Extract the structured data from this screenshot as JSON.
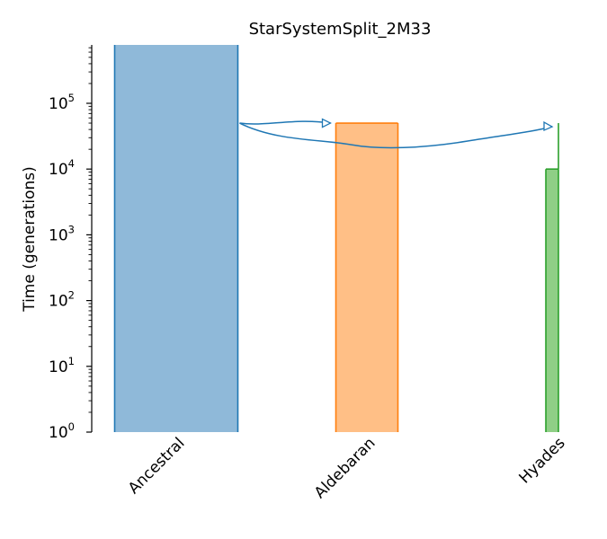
{
  "chart_data": {
    "type": "bar",
    "title": "StarSystemSplit_2M33",
    "ylabel": "Time (generations)",
    "xlabel": "",
    "yscale": "log",
    "ylim": [
      1,
      800000
    ],
    "y_ticks": [
      {
        "base": "10",
        "exp": "0"
      },
      {
        "base": "10",
        "exp": "1"
      },
      {
        "base": "10",
        "exp": "2"
      },
      {
        "base": "10",
        "exp": "3"
      },
      {
        "base": "10",
        "exp": "4"
      },
      {
        "base": "10",
        "exp": "5"
      }
    ],
    "categories": [
      "Ancestral",
      "Aldebaran",
      "Hyades"
    ],
    "bars": [
      {
        "name": "Ancestral",
        "bottom": 1,
        "top": 800000,
        "fill": "#8fb9d9",
        "stroke": "#1f77b4"
      },
      {
        "name": "Aldebaran",
        "bottom": 1,
        "top": 50000,
        "fill": "#ffbf86",
        "stroke": "#ff7f0e"
      },
      {
        "name": "Hyades",
        "bottom": 1,
        "top": 10000,
        "fill": "#8fcf86",
        "stroke": "#2ca02c"
      }
    ],
    "stem": {
      "deme": "Hyades",
      "from": 10000,
      "to": 50000,
      "color": "#2ca02c"
    },
    "migrations": [
      {
        "source": "Ancestral",
        "dest": "Aldebaran",
        "time": 50000
      },
      {
        "source": "Ancestral",
        "dest": "Hyades",
        "time": 50000
      }
    ],
    "arrow_color": "#1f77b4",
    "grid": false
  }
}
